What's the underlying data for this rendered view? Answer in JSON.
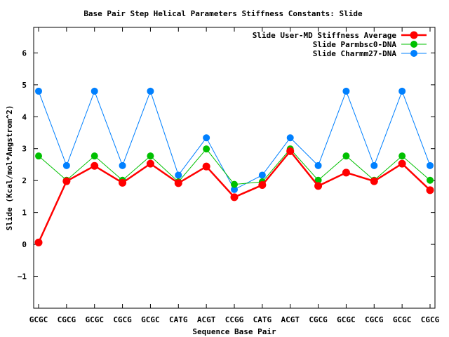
{
  "chart_data": {
    "type": "line",
    "title": "Base Pair Step Helical Parameters Stiffness Constants: Slide",
    "xlabel": "Sequence Base Pair",
    "ylabel": "Slide (Kcal/mol*Angstrom^2)",
    "categories": [
      "GCGC",
      "CGCG",
      "GCGC",
      "CGCG",
      "GCGC",
      "CATG",
      "ACGT",
      "CCGG",
      "CATG",
      "ACGT",
      "CGCG",
      "GCGC",
      "CGCG",
      "GCGC",
      "CGCG"
    ],
    "ylim": [
      -2,
      6.8
    ],
    "yticks": [
      -1,
      0,
      1,
      2,
      3,
      4,
      5,
      6
    ],
    "grid": false,
    "legend_position": "top-right",
    "series": [
      {
        "name": "Slide User-MD Stiffness Average",
        "color": "#ff0000",
        "values": [
          0.06,
          1.98,
          2.46,
          1.93,
          2.53,
          1.92,
          2.44,
          1.48,
          1.86,
          2.92,
          1.83,
          2.25,
          1.98,
          2.53,
          1.7
        ]
      },
      {
        "name": "Slide Parmbsc0-DNA",
        "color": "#00c000",
        "values": [
          2.77,
          2.01,
          2.77,
          2.01,
          2.77,
          1.96,
          2.99,
          1.88,
          1.96,
          2.99,
          2.01,
          2.77,
          2.01,
          2.77,
          2.01
        ]
      },
      {
        "name": "Slide Charmm27-DNA",
        "color": "#0080ff",
        "values": [
          4.8,
          2.47,
          4.8,
          2.47,
          4.8,
          2.17,
          3.34,
          1.72,
          2.17,
          3.34,
          2.47,
          4.8,
          2.47,
          4.8,
          2.47
        ]
      }
    ]
  }
}
